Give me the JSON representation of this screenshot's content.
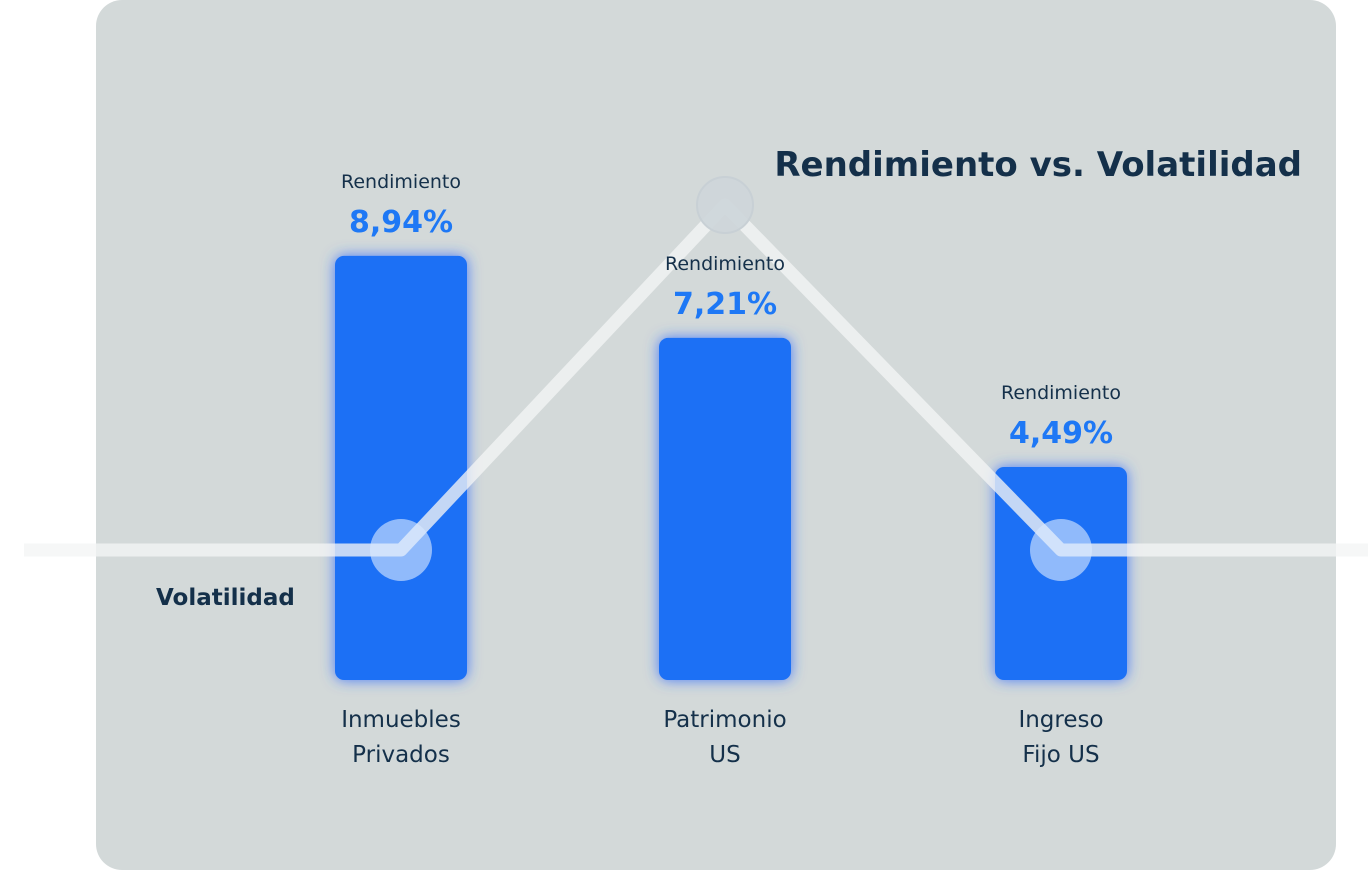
{
  "chart_data": {
    "type": "bar",
    "title": "Rendimiento vs. Volatilidad",
    "metric_label": "Rendimiento",
    "categories": [
      [
        "Inmuebles",
        "Privados"
      ],
      [
        "Patrimonio",
        "US"
      ],
      [
        "Ingreso",
        "Fijo US"
      ]
    ],
    "series": [
      {
        "name": "Rendimiento",
        "values": [
          8.94,
          7.21,
          4.49
        ],
        "value_labels": [
          "8,94%",
          "7,21%",
          "4,49%"
        ]
      },
      {
        "name": "Volatilidad",
        "type": "line",
        "values": [
          1,
          3,
          1
        ]
      }
    ],
    "colors": {
      "bar": "#1e6ff5",
      "value_text": "#1e78f5",
      "text": "#14304a",
      "line": "#f3f5f5",
      "panel": "#d3d9d9"
    },
    "grid": false,
    "legend": "none"
  }
}
